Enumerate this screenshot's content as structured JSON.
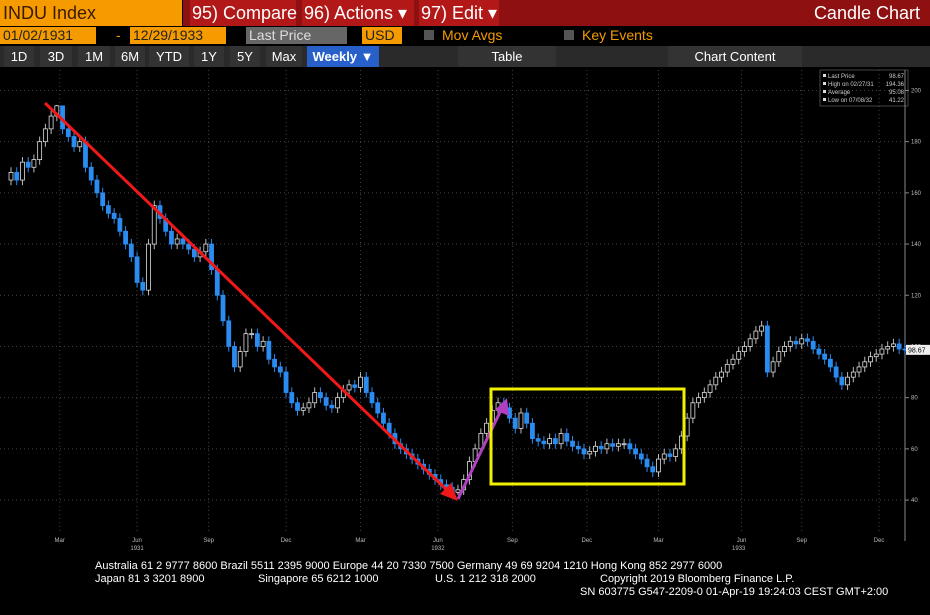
{
  "toolbar": {
    "security": "INDU Index",
    "compare": "95) Compare",
    "actions": "96) Actions ▾",
    "edit": "97) Edit ▾",
    "chart_kind": "Candle Chart",
    "start_date": "01/02/1931",
    "dash": "-",
    "end_date": "12/29/1933",
    "price_field": "Last Price",
    "currency": "USD",
    "mov_avgs": "Mov Avgs",
    "key_events": "Key Events",
    "ranges": [
      "1D",
      "3D",
      "1M",
      "6M",
      "YTD",
      "1Y",
      "5Y",
      "Max"
    ],
    "period": "Weekly ▼",
    "table": "Table",
    "chart_content": "Chart Content"
  },
  "chart_data": {
    "type": "candlestick",
    "up_color": "#ffffff",
    "down_color": "#2b8cf0",
    "legend": {
      "last_label": "Last Price",
      "high_label": "High on 02/27/31",
      "average_label": "Average",
      "average": 95.08,
      "low_label": "Low on 07/08/32"
    },
    "open": [
      165,
      168,
      165,
      172,
      170,
      173,
      180,
      185,
      190,
      194,
      185,
      182,
      178,
      180,
      170,
      165,
      160,
      155,
      152,
      150,
      145,
      140,
      135,
      125,
      122,
      140,
      155,
      150,
      145,
      140,
      142,
      140,
      138,
      135,
      137,
      140,
      130,
      120,
      110,
      100,
      92,
      98,
      105,
      105,
      100,
      102,
      95,
      92,
      90,
      82,
      78,
      75,
      76,
      78,
      82,
      80,
      77,
      76,
      80,
      83,
      85,
      84,
      88,
      82,
      78,
      74,
      70,
      66,
      62,
      60,
      58,
      56,
      54,
      52,
      50,
      48,
      46,
      45,
      43,
      44,
      48,
      55,
      60,
      66,
      70,
      75,
      78,
      76,
      72,
      68,
      74,
      70,
      64,
      63,
      62,
      64,
      62,
      66,
      63,
      61,
      60,
      58,
      59,
      61,
      60,
      62,
      61,
      62,
      62,
      60,
      58,
      56,
      53,
      51,
      56,
      58,
      57,
      60,
      65,
      72,
      78,
      80,
      82,
      85,
      88,
      90,
      93,
      95,
      98,
      100,
      103,
      106,
      108,
      90,
      94,
      98,
      100,
      102,
      101,
      103,
      102,
      99,
      97,
      95,
      92,
      88,
      85,
      88,
      90,
      92,
      94,
      96,
      97,
      99,
      100,
      101,
      99
    ],
    "high": [
      170,
      170,
      174,
      174,
      175,
      182,
      187,
      192,
      194.36,
      194,
      187,
      184,
      182,
      182,
      172,
      167,
      162,
      157,
      154,
      152,
      147,
      142,
      137,
      127,
      142,
      157,
      157,
      152,
      147,
      144,
      144,
      142,
      140,
      139,
      142,
      142,
      132,
      122,
      112,
      102,
      100,
      107,
      107,
      107,
      104,
      104,
      97,
      94,
      92,
      84,
      80,
      78,
      80,
      84,
      84,
      82,
      79,
      82,
      85,
      87,
      87,
      90,
      90,
      84,
      80,
      76,
      72,
      68,
      64,
      62,
      60,
      58,
      56,
      54,
      52,
      50,
      48,
      47,
      46,
      50,
      57,
      62,
      68,
      72,
      77,
      80,
      80,
      78,
      74,
      76,
      76,
      72,
      66,
      65,
      66,
      66,
      68,
      68,
      65,
      63,
      62,
      61,
      63,
      63,
      64,
      64,
      64,
      64,
      64,
      62,
      60,
      58,
      55,
      58,
      60,
      60,
      62,
      67,
      74,
      80,
      82,
      84,
      87,
      90,
      92,
      95,
      97,
      100,
      102,
      105,
      108,
      110,
      110,
      96,
      100,
      102,
      104,
      104,
      105,
      105,
      104,
      101,
      99,
      97,
      94,
      90,
      90,
      92,
      94,
      96,
      98,
      99,
      101,
      102,
      103,
      103,
      101
    ],
    "low": [
      163,
      163,
      163,
      168,
      168,
      171,
      178,
      183,
      188,
      183,
      180,
      176,
      176,
      168,
      163,
      158,
      153,
      150,
      148,
      143,
      138,
      133,
      123,
      120,
      120,
      138,
      148,
      143,
      138,
      138,
      138,
      136,
      133,
      133,
      135,
      128,
      118,
      108,
      98,
      90,
      90,
      96,
      103,
      98,
      98,
      93,
      90,
      88,
      80,
      76,
      73,
      73,
      74,
      76,
      78,
      75,
      74,
      74,
      78,
      81,
      82,
      82,
      80,
      76,
      72,
      68,
      64,
      60,
      58,
      56,
      54,
      52,
      50,
      48,
      46,
      44,
      43,
      41.22,
      42,
      42,
      46,
      53,
      58,
      64,
      68,
      73,
      74,
      70,
      66,
      66,
      68,
      62,
      61,
      60,
      60,
      60,
      60,
      61,
      59,
      58,
      56,
      56,
      57,
      58,
      58,
      59,
      59,
      60,
      58,
      56,
      54,
      51,
      49,
      49,
      54,
      55,
      55,
      58,
      63,
      70,
      76,
      78,
      80,
      83,
      86,
      88,
      91,
      93,
      96,
      98,
      101,
      104,
      88,
      88,
      92,
      96,
      98,
      99,
      99,
      100,
      97,
      95,
      93,
      90,
      86,
      83,
      83,
      86,
      88,
      90,
      92,
      94,
      95,
      97,
      98,
      97,
      97
    ],
    "close": [
      168,
      165,
      172,
      170,
      173,
      180,
      185,
      190,
      194,
      185,
      182,
      178,
      180,
      170,
      165,
      160,
      155,
      152,
      150,
      145,
      140,
      135,
      125,
      122,
      140,
      155,
      150,
      145,
      140,
      142,
      140,
      138,
      135,
      137,
      140,
      130,
      120,
      110,
      100,
      92,
      98,
      105,
      105,
      100,
      102,
      95,
      92,
      90,
      82,
      78,
      75,
      76,
      78,
      82,
      80,
      77,
      76,
      80,
      83,
      85,
      84,
      88,
      82,
      78,
      74,
      70,
      66,
      62,
      60,
      58,
      56,
      54,
      52,
      50,
      48,
      46,
      45,
      43,
      44,
      48,
      55,
      60,
      66,
      70,
      75,
      78,
      76,
      72,
      68,
      74,
      70,
      64,
      63,
      62,
      64,
      62,
      66,
      63,
      61,
      60,
      58,
      59,
      61,
      60,
      62,
      61,
      62,
      62,
      60,
      58,
      56,
      53,
      51,
      56,
      58,
      57,
      60,
      65,
      72,
      78,
      80,
      82,
      85,
      88,
      90,
      93,
      95,
      98,
      100,
      103,
      106,
      108,
      90,
      94,
      98,
      100,
      102,
      101,
      103,
      102,
      99,
      97,
      95,
      92,
      88,
      85,
      88,
      90,
      92,
      94,
      96,
      97,
      99,
      100,
      101,
      99,
      98.67
    ],
    "ylim": [
      24,
      208
    ],
    "yticks": [
      40,
      60,
      80,
      100,
      120,
      140,
      160,
      180,
      200
    ],
    "grid": true,
    "xticks": [
      {
        "value": 8.5,
        "label": "Mar"
      },
      {
        "value": 22,
        "label": "Jun"
      },
      {
        "value": 34.5,
        "label": "Sep"
      },
      {
        "value": 48,
        "label": "Dec"
      },
      {
        "value": 61,
        "label": "Mar"
      },
      {
        "value": 74.5,
        "label": "Jun"
      },
      {
        "value": 87.5,
        "label": "Sep"
      },
      {
        "value": 100.5,
        "label": "Dec"
      },
      {
        "value": 113,
        "label": "Mar"
      },
      {
        "value": 127.5,
        "label": "Jun"
      },
      {
        "value": 138,
        "label": "Sep"
      },
      {
        "value": 151.5,
        "label": "Dec"
      }
    ],
    "year_labels": [
      {
        "value": 22,
        "label": "1931"
      },
      {
        "value": 74.5,
        "label": "1932"
      },
      {
        "value": 127,
        "label": "1933"
      }
    ]
  },
  "footer": {
    "line1": "Australia 61 2 9777 8600 Brazil 5511 2395 9000 Europe 44 20 7330 7500 Germany 49 69 9204 1210 Hong Kong 852 2977 6000",
    "line2": [
      "Japan 81 3 3201 8900",
      "Singapore 65 6212 1000",
      "U.S. 1 212 318 2000",
      "Copyright 2019 Bloomberg Finance L.P."
    ],
    "line3": "SN 603775 G547-2209-0 01-Apr-19 19:24:03 CEST GMT+2:00"
  }
}
